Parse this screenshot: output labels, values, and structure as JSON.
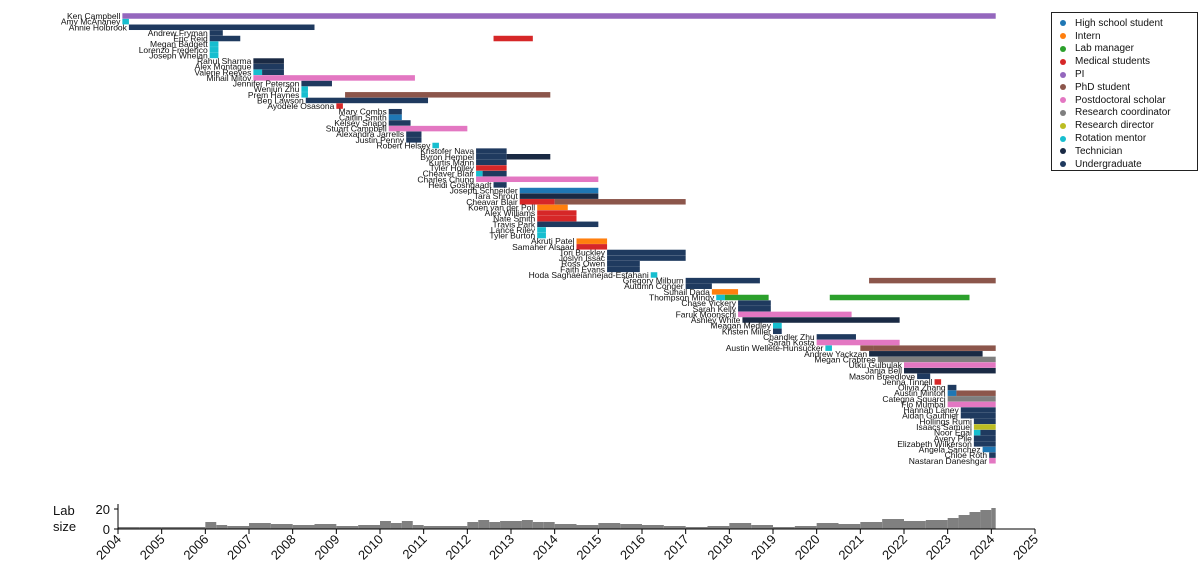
{
  "chart_data": {
    "type": "gantt",
    "x_ticks": [
      2004,
      2005,
      2006,
      2007,
      2008,
      2009,
      2010,
      2011,
      2012,
      2013,
      2014,
      2015,
      2016,
      2017,
      2018,
      2019,
      2020,
      2021,
      2022,
      2023,
      2024,
      2025
    ],
    "xlim": [
      2004,
      2025
    ],
    "legend": {
      "placement": "top-right",
      "items": [
        {
          "label": "High school student",
          "color": "#1f77b4"
        },
        {
          "label": "Intern",
          "color": "#ff7f0e"
        },
        {
          "label": "Lab manager",
          "color": "#2ca02c"
        },
        {
          "label": "Medical students",
          "color": "#d62728"
        },
        {
          "label": "PI",
          "color": "#9467bd"
        },
        {
          "label": "PhD student",
          "color": "#8c564b"
        },
        {
          "label": "Postdoctoral scholar",
          "color": "#e377c2"
        },
        {
          "label": "Research coordinator",
          "color": "#7f7f7f"
        },
        {
          "label": "Research director",
          "color": "#bcbd22"
        },
        {
          "label": "Rotation mentor",
          "color": "#17becf"
        },
        {
          "label": "Technician",
          "color": "#1a2a44"
        },
        {
          "label": "Undergraduate",
          "color": "#1f3a5f"
        }
      ]
    },
    "people": [
      {
        "name": "Ken Campbell",
        "bars": [
          [
            2004.1,
            2024.1,
            "PI"
          ]
        ]
      },
      {
        "name": "Amy McAnaney",
        "bars": [
          [
            2004.1,
            2004.25,
            "Rotation mentor"
          ]
        ]
      },
      {
        "name": "Annie Holbrook",
        "bars": [
          [
            2004.25,
            2008.5,
            "Undergraduate"
          ]
        ]
      },
      {
        "name": "Andrew Fryman",
        "bars": [
          [
            2006.1,
            2006.4,
            "Undergraduate"
          ]
        ]
      },
      {
        "name": "Eric Reid",
        "bars": [
          [
            2006.1,
            2006.8,
            "Undergraduate"
          ],
          [
            2012.6,
            2013.5,
            "Medical students"
          ]
        ]
      },
      {
        "name": "Megan Badgett",
        "bars": [
          [
            2006.1,
            2006.3,
            "Rotation mentor"
          ]
        ]
      },
      {
        "name": "Lorenzo Frederico",
        "bars": [
          [
            2006.1,
            2006.3,
            "Rotation mentor"
          ]
        ]
      },
      {
        "name": "Joseph Whelan",
        "bars": [
          [
            2006.1,
            2006.3,
            "Rotation mentor"
          ]
        ]
      },
      {
        "name": "Rahul Sharma",
        "bars": [
          [
            2007.1,
            2007.8,
            "Technician"
          ]
        ]
      },
      {
        "name": "Alex Montague",
        "bars": [
          [
            2007.1,
            2007.8,
            "Undergraduate"
          ]
        ]
      },
      {
        "name": "Valerie Reeves",
        "bars": [
          [
            2007.1,
            2007.3,
            "Rotation mentor"
          ],
          [
            2007.3,
            2007.8,
            "Undergraduate"
          ]
        ]
      },
      {
        "name": "Mihail Mitov",
        "bars": [
          [
            2007.1,
            2010.8,
            "Postdoctoral scholar"
          ]
        ]
      },
      {
        "name": "Jennifer Peterson",
        "bars": [
          [
            2008.2,
            2008.9,
            "Undergraduate"
          ]
        ]
      },
      {
        "name": "Wenjun Zhu",
        "bars": [
          [
            2008.2,
            2008.35,
            "Rotation mentor"
          ]
        ]
      },
      {
        "name": "Prem Haynes",
        "bars": [
          [
            2008.2,
            2008.35,
            "Rotation mentor"
          ],
          [
            2009.2,
            2013.9,
            "PhD student"
          ]
        ]
      },
      {
        "name": "Ben Lawson",
        "bars": [
          [
            2008.3,
            2011.1,
            "Undergraduate"
          ]
        ]
      },
      {
        "name": "Ayodele Osasona",
        "bars": [
          [
            2009.0,
            2009.15,
            "Medical students"
          ]
        ]
      },
      {
        "name": "Mary Combs",
        "bars": [
          [
            2010.2,
            2010.5,
            "Undergraduate"
          ]
        ]
      },
      {
        "name": "Caitlin Smith",
        "bars": [
          [
            2010.2,
            2010.5,
            "High school student"
          ]
        ]
      },
      {
        "name": "Kelsey Snapp",
        "bars": [
          [
            2010.2,
            2010.7,
            "Undergraduate"
          ]
        ]
      },
      {
        "name": "Stuart Campbell",
        "bars": [
          [
            2010.2,
            2012.0,
            "Postdoctoral scholar"
          ]
        ]
      },
      {
        "name": "Alexandra Jarrells",
        "bars": [
          [
            2010.6,
            2010.95,
            "Undergraduate"
          ]
        ]
      },
      {
        "name": "Justin Penny",
        "bars": [
          [
            2010.6,
            2010.95,
            "Undergraduate"
          ]
        ]
      },
      {
        "name": "Robert Helsey",
        "bars": [
          [
            2011.2,
            2011.35,
            "Rotation mentor"
          ]
        ]
      },
      {
        "name": "Kristofer Nava",
        "bars": [
          [
            2012.2,
            2012.9,
            "Undergraduate"
          ]
        ]
      },
      {
        "name": "Byron Hempel",
        "bars": [
          [
            2012.2,
            2012.9,
            "Undergraduate"
          ],
          [
            2012.9,
            2013.9,
            "Technician"
          ]
        ]
      },
      {
        "name": "Kurtis Mann",
        "bars": [
          [
            2012.2,
            2012.9,
            "Undergraduate"
          ]
        ]
      },
      {
        "name": "Tyler Holley",
        "bars": [
          [
            2012.2,
            2012.9,
            "Medical students"
          ]
        ]
      },
      {
        "name": "Cheaver Blair",
        "bars": [
          [
            2012.2,
            2012.35,
            "Rotation mentor"
          ],
          [
            2012.35,
            2012.9,
            "Undergraduate"
          ]
        ]
      },
      {
        "name": "Charles Chung",
        "bars": [
          [
            2012.2,
            2015.0,
            "Postdoctoral scholar"
          ]
        ]
      },
      {
        "name": "Heidi Goshgaadt",
        "bars": [
          [
            2012.6,
            2012.9,
            "Undergraduate"
          ]
        ]
      },
      {
        "name": "Joseph Schneider",
        "bars": [
          [
            2013.2,
            2015.0,
            "High school student"
          ]
        ]
      },
      {
        "name": "Tara Shrout",
        "bars": [
          [
            2013.2,
            2015.0,
            "Technician"
          ]
        ]
      },
      {
        "name": "Cheavar Blair",
        "bars": [
          [
            2013.2,
            2014.0,
            "Medical students"
          ],
          [
            2014.0,
            2017.0,
            "PhD student"
          ]
        ]
      },
      {
        "name": "Koen van der Poll",
        "bars": [
          [
            2013.6,
            2014.3,
            "Intern"
          ]
        ]
      },
      {
        "name": "Alex Williams",
        "bars": [
          [
            2013.6,
            2014.5,
            "Medical students"
          ]
        ]
      },
      {
        "name": "Nate Smith",
        "bars": [
          [
            2013.6,
            2014.5,
            "Medical students"
          ]
        ]
      },
      {
        "name": "Travis Park",
        "bars": [
          [
            2013.6,
            2015.0,
            "Undergraduate"
          ]
        ]
      },
      {
        "name": "Lance Riley",
        "bars": [
          [
            2013.6,
            2013.8,
            "Rotation mentor"
          ]
        ]
      },
      {
        "name": "Tyler Burton",
        "bars": [
          [
            2013.6,
            2013.8,
            "Rotation mentor"
          ]
        ]
      },
      {
        "name": "Akruti Patel",
        "bars": [
          [
            2014.5,
            2015.2,
            "Intern"
          ]
        ]
      },
      {
        "name": "Samaher Alsaad",
        "bars": [
          [
            2014.5,
            2015.2,
            "Medical students"
          ]
        ]
      },
      {
        "name": "Tori Buckley",
        "bars": [
          [
            2015.2,
            2017.0,
            "Undergraduate"
          ]
        ]
      },
      {
        "name": "Joslyn Issac",
        "bars": [
          [
            2015.2,
            2017.0,
            "Undergraduate"
          ]
        ]
      },
      {
        "name": "Ross Owen",
        "bars": [
          [
            2015.2,
            2015.95,
            "Undergraduate"
          ]
        ]
      },
      {
        "name": "Faith Evans",
        "bars": [
          [
            2015.2,
            2015.95,
            "Undergraduate"
          ]
        ]
      },
      {
        "name": "Hoda Saghaeiannejad-Esfahani",
        "bars": [
          [
            2016.2,
            2016.35,
            "Rotation mentor"
          ]
        ]
      },
      {
        "name": "Gregory Milburn",
        "bars": [
          [
            2017.0,
            2018.7,
            "Undergraduate"
          ],
          [
            2021.2,
            2024.1,
            "PhD student"
          ]
        ]
      },
      {
        "name": "Autumn Conger",
        "bars": [
          [
            2017.0,
            2017.6,
            "Undergraduate"
          ]
        ]
      },
      {
        "name": "Suhail Dada",
        "bars": [
          [
            2017.6,
            2018.2,
            "Intern"
          ]
        ]
      },
      {
        "name": "Thompson Mindy",
        "bars": [
          [
            2017.7,
            2017.9,
            "Rotation mentor"
          ],
          [
            2017.9,
            2018.9,
            "Lab manager"
          ],
          [
            2020.3,
            2023.5,
            "Lab manager"
          ]
        ]
      },
      {
        "name": "Chase Vickery",
        "bars": [
          [
            2018.2,
            2018.95,
            "Undergraduate"
          ]
        ]
      },
      {
        "name": "Sarah Kelly",
        "bars": [
          [
            2018.2,
            2018.95,
            "Undergraduate"
          ]
        ]
      },
      {
        "name": "Faruk Moonschi",
        "bars": [
          [
            2018.2,
            2020.8,
            "Postdoctoral scholar"
          ]
        ]
      },
      {
        "name": "Ashley White",
        "bars": [
          [
            2018.3,
            2021.9,
            "Technician"
          ]
        ]
      },
      {
        "name": "Meagan Medley",
        "bars": [
          [
            2019.0,
            2019.2,
            "Rotation mentor"
          ]
        ]
      },
      {
        "name": "Kristen Miller",
        "bars": [
          [
            2019.0,
            2019.2,
            "Undergraduate"
          ]
        ]
      },
      {
        "name": "Chandler Zhu",
        "bars": [
          [
            2020.0,
            2020.9,
            "Undergraduate"
          ]
        ]
      },
      {
        "name": "Sarah Kosta",
        "bars": [
          [
            2020.0,
            2021.9,
            "Postdoctoral scholar"
          ]
        ]
      },
      {
        "name": "Austin Wellete-Hunsucker",
        "bars": [
          [
            2020.2,
            2020.35,
            "Rotation mentor"
          ],
          [
            2021.0,
            2021.3,
            "PhD student"
          ],
          [
            2021.3,
            2024.1,
            "PhD student"
          ]
        ]
      },
      {
        "name": "Andrew Yackzan",
        "bars": [
          [
            2021.2,
            2023.8,
            "Technician"
          ]
        ]
      },
      {
        "name": "Megan Crabtree",
        "bars": [
          [
            2021.4,
            2024.1,
            "Research coordinator"
          ]
        ]
      },
      {
        "name": "Utku Gulbulak",
        "bars": [
          [
            2022.0,
            2024.1,
            "Postdoctoral scholar"
          ]
        ]
      },
      {
        "name": "Jania Bell",
        "bars": [
          [
            2022.0,
            2024.1,
            "Technician"
          ]
        ]
      },
      {
        "name": "Mason Breedlove",
        "bars": [
          [
            2022.3,
            2022.6,
            "Undergraduate"
          ]
        ]
      },
      {
        "name": "Jenna Tinnell",
        "bars": [
          [
            2022.7,
            2022.85,
            "Medical students"
          ]
        ]
      },
      {
        "name": "Olivia Zhang",
        "bars": [
          [
            2023.0,
            2023.2,
            "Undergraduate"
          ]
        ]
      },
      {
        "name": "Austin Minton",
        "bars": [
          [
            2023.0,
            2023.2,
            "High school student"
          ],
          [
            2023.2,
            2024.1,
            "PhD student"
          ]
        ]
      },
      {
        "name": "Categna Squarci",
        "bars": [
          [
            2023.0,
            2024.1,
            "Research coordinator"
          ]
        ]
      },
      {
        "name": "Flo Mumbal",
        "bars": [
          [
            2023.0,
            2024.1,
            "Postdoctoral scholar"
          ]
        ]
      },
      {
        "name": "Hannah Laney",
        "bars": [
          [
            2023.3,
            2024.1,
            "Undergraduate"
          ]
        ]
      },
      {
        "name": "Aidan Gauthier",
        "bars": [
          [
            2023.3,
            2024.1,
            "Undergraduate"
          ]
        ]
      },
      {
        "name": "Hollings Rumi",
        "bars": [
          [
            2023.6,
            2024.1,
            "Undergraduate"
          ]
        ]
      },
      {
        "name": "Isaacs Samuel",
        "bars": [
          [
            2023.6,
            2024.1,
            "Research director"
          ]
        ]
      },
      {
        "name": "Noor Egal",
        "bars": [
          [
            2023.6,
            2023.75,
            "Rotation mentor"
          ],
          [
            2023.75,
            2024.1,
            "Undergraduate"
          ]
        ]
      },
      {
        "name": "Avery Pile",
        "bars": [
          [
            2023.6,
            2024.1,
            "Undergraduate"
          ]
        ]
      },
      {
        "name": "Elizabeth Wilkerson",
        "bars": [
          [
            2023.6,
            2024.1,
            "Undergraduate"
          ]
        ]
      },
      {
        "name": "Angela Sanchez",
        "bars": [
          [
            2023.8,
            2024.1,
            "High school student"
          ]
        ]
      },
      {
        "name": "Chloe Roth",
        "bars": [
          [
            2023.95,
            2024.1,
            "Undergraduate"
          ]
        ]
      },
      {
        "name": "Nastaran Daneshgar",
        "bars": [
          [
            2023.95,
            2024.1,
            "Postdoctoral scholar"
          ]
        ]
      }
    ],
    "lab_size": {
      "ylabel": "Lab size",
      "yticks": [
        0,
        20
      ],
      "ylim": [
        0,
        22
      ],
      "bar_color": "#808080",
      "x": [
        2004.0,
        2004.5,
        2005.0,
        2005.5,
        2006.0,
        2006.25,
        2006.5,
        2007.0,
        2007.5,
        2008.0,
        2008.5,
        2009.0,
        2009.5,
        2010.0,
        2010.25,
        2010.5,
        2010.75,
        2011.0,
        2011.5,
        2012.0,
        2012.25,
        2012.5,
        2012.75,
        2013.0,
        2013.25,
        2013.5,
        2013.75,
        2014.0,
        2014.5,
        2015.0,
        2015.5,
        2016.0,
        2016.5,
        2017.0,
        2017.5,
        2018.0,
        2018.5,
        2019.0,
        2019.5,
        2020.0,
        2020.5,
        2021.0,
        2021.5,
        2022.0,
        2022.5,
        2023.0,
        2023.25,
        2023.5,
        2023.75,
        2024.0
      ],
      "values": [
        2,
        2,
        2,
        2,
        7,
        4,
        3,
        6,
        5,
        4,
        5,
        3,
        4,
        8,
        6,
        8,
        4,
        3,
        3,
        7,
        9,
        7,
        8,
        8,
        9,
        7,
        7,
        5,
        4,
        6,
        5,
        4,
        3,
        2,
        3,
        6,
        4,
        2,
        3,
        6,
        5,
        7,
        10,
        8,
        9,
        11,
        14,
        17,
        19,
        21
      ]
    }
  }
}
